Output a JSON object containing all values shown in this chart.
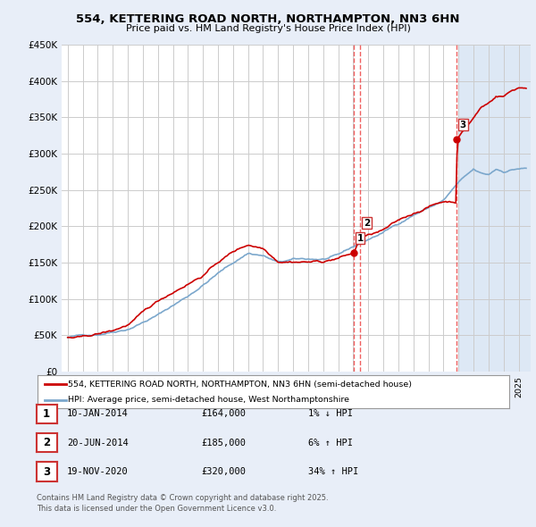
{
  "title": "554, KETTERING ROAD NORTH, NORTHAMPTON, NN3 6HN",
  "subtitle": "Price paid vs. HM Land Registry's House Price Index (HPI)",
  "legend_property": "554, KETTERING ROAD NORTH, NORTHAMPTON, NN3 6HN (semi-detached house)",
  "legend_hpi": "HPI: Average price, semi-detached house, West Northamptonshire",
  "ylabel_ticks": [
    "£0",
    "£50K",
    "£100K",
    "£150K",
    "£200K",
    "£250K",
    "£300K",
    "£350K",
    "£400K",
    "£450K"
  ],
  "ylim": [
    0,
    450000
  ],
  "sale_points": [
    {
      "label": "1",
      "date_num": 2014.03,
      "price": 164000
    },
    {
      "label": "2",
      "date_num": 2014.47,
      "price": 185000
    },
    {
      "label": "3",
      "date_num": 2020.89,
      "price": 320000
    }
  ],
  "sale_annotations": [
    {
      "num": "1",
      "date": "10-JAN-2014",
      "price": "£164,000",
      "change": "1% ↓ HPI"
    },
    {
      "num": "2",
      "date": "20-JUN-2014",
      "price": "£185,000",
      "change": "6% ↑ HPI"
    },
    {
      "num": "3",
      "date": "19-NOV-2020",
      "price": "£320,000",
      "change": "34% ↑ HPI"
    }
  ],
  "footnote1": "Contains HM Land Registry data © Crown copyright and database right 2025.",
  "footnote2": "This data is licensed under the Open Government Licence v3.0.",
  "bg_color": "#e8eef8",
  "plot_bg": "#ffffff",
  "shade_bg": "#dde8f5",
  "grid_color": "#cccccc",
  "red_color": "#cc0000",
  "blue_color": "#7ba7cc",
  "vline_color": "#ee4444"
}
